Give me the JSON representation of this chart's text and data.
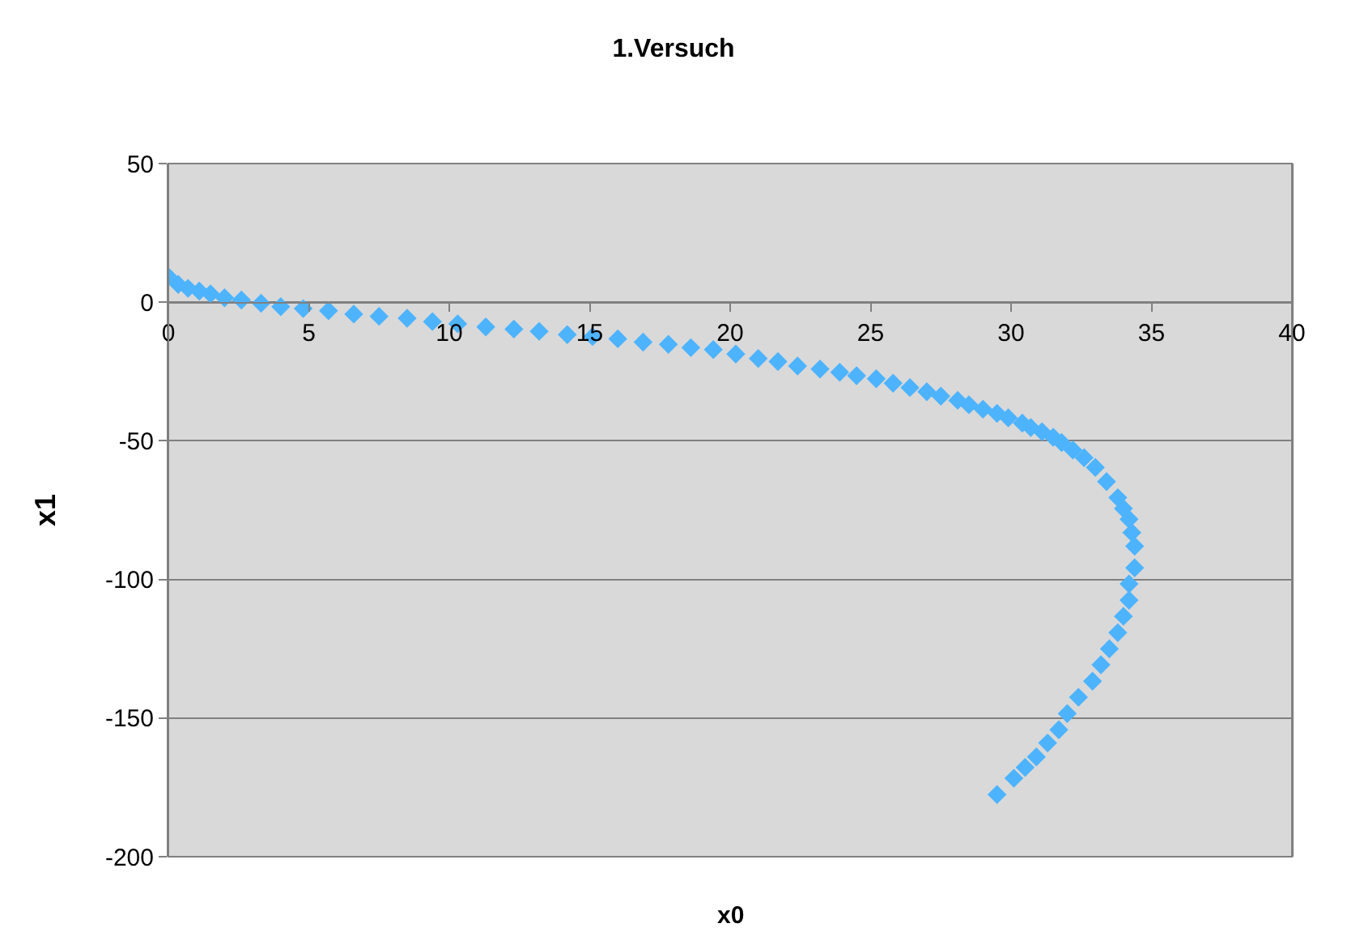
{
  "chart_data": {
    "type": "scatter",
    "title": "1.Versuch",
    "xlabel": "x0",
    "ylabel": "x1",
    "xlim": [
      0,
      40
    ],
    "xticks": [
      0,
      5,
      10,
      15,
      20,
      25,
      30,
      35,
      40
    ],
    "ylim": [
      -200,
      50
    ],
    "yticks": [
      -200,
      -150,
      -100,
      -50,
      0,
      50
    ],
    "grid": "y",
    "marker": "diamond",
    "series": [
      {
        "color": "#4db3ff",
        "x": [
          0,
          0.35,
          0.7,
          1.1,
          1.5,
          2.0,
          2.6,
          3.3,
          4.0,
          4.8,
          5.7,
          6.6,
          7.5,
          8.5,
          9.4,
          10.3,
          11.3,
          12.3,
          13.2,
          14.2,
          15.1,
          16.0,
          16.9,
          17.8,
          18.6,
          19.4,
          20.2,
          21.0,
          21.7,
          22.4,
          23.2,
          23.9,
          24.5,
          25.2,
          25.8,
          26.4,
          27.0,
          27.5,
          28.1,
          28.5,
          29.0,
          29.5,
          29.9,
          30.4,
          30.7,
          31.1,
          31.5,
          31.8,
          32.2,
          32.6,
          33.0,
          33.4,
          33.8,
          34.0,
          34.2,
          34.3,
          34.4,
          34.4,
          34.2,
          34.2,
          34.0,
          33.8,
          33.5,
          33.2,
          32.9,
          32.4,
          32.0,
          31.7,
          31.3,
          30.9,
          30.5,
          30.1,
          29.5
        ],
        "values": [
          9.2,
          6.4,
          5,
          4,
          3,
          1.6,
          0.8,
          -0.4,
          -1.6,
          -2.3,
          -3.1,
          -4.3,
          -5.1,
          -5.8,
          -7,
          -7.8,
          -8.9,
          -9.7,
          -10.5,
          -11.7,
          -12.4,
          -13.2,
          -14.4,
          -15.2,
          -16.4,
          -17.1,
          -18.7,
          -20.3,
          -21.4,
          -23,
          -24.1,
          -25.3,
          -26.5,
          -27.6,
          -29.2,
          -30.8,
          -32.3,
          -33.9,
          -35.4,
          -37,
          -38.6,
          -40.1,
          -41.7,
          -43.6,
          -45.2,
          -46.7,
          -48.7,
          -50.6,
          -53.3,
          -56.1,
          -59.6,
          -64.7,
          -70.5,
          -74.4,
          -78.3,
          -83.1,
          -88,
          -95.8,
          -101.6,
          -107.5,
          -113.3,
          -119.2,
          -125,
          -130.8,
          -136.7,
          -142.5,
          -148.4,
          -154.2,
          -159,
          -164,
          -167.8,
          -171.7,
          -177.6
        ]
      }
    ]
  }
}
